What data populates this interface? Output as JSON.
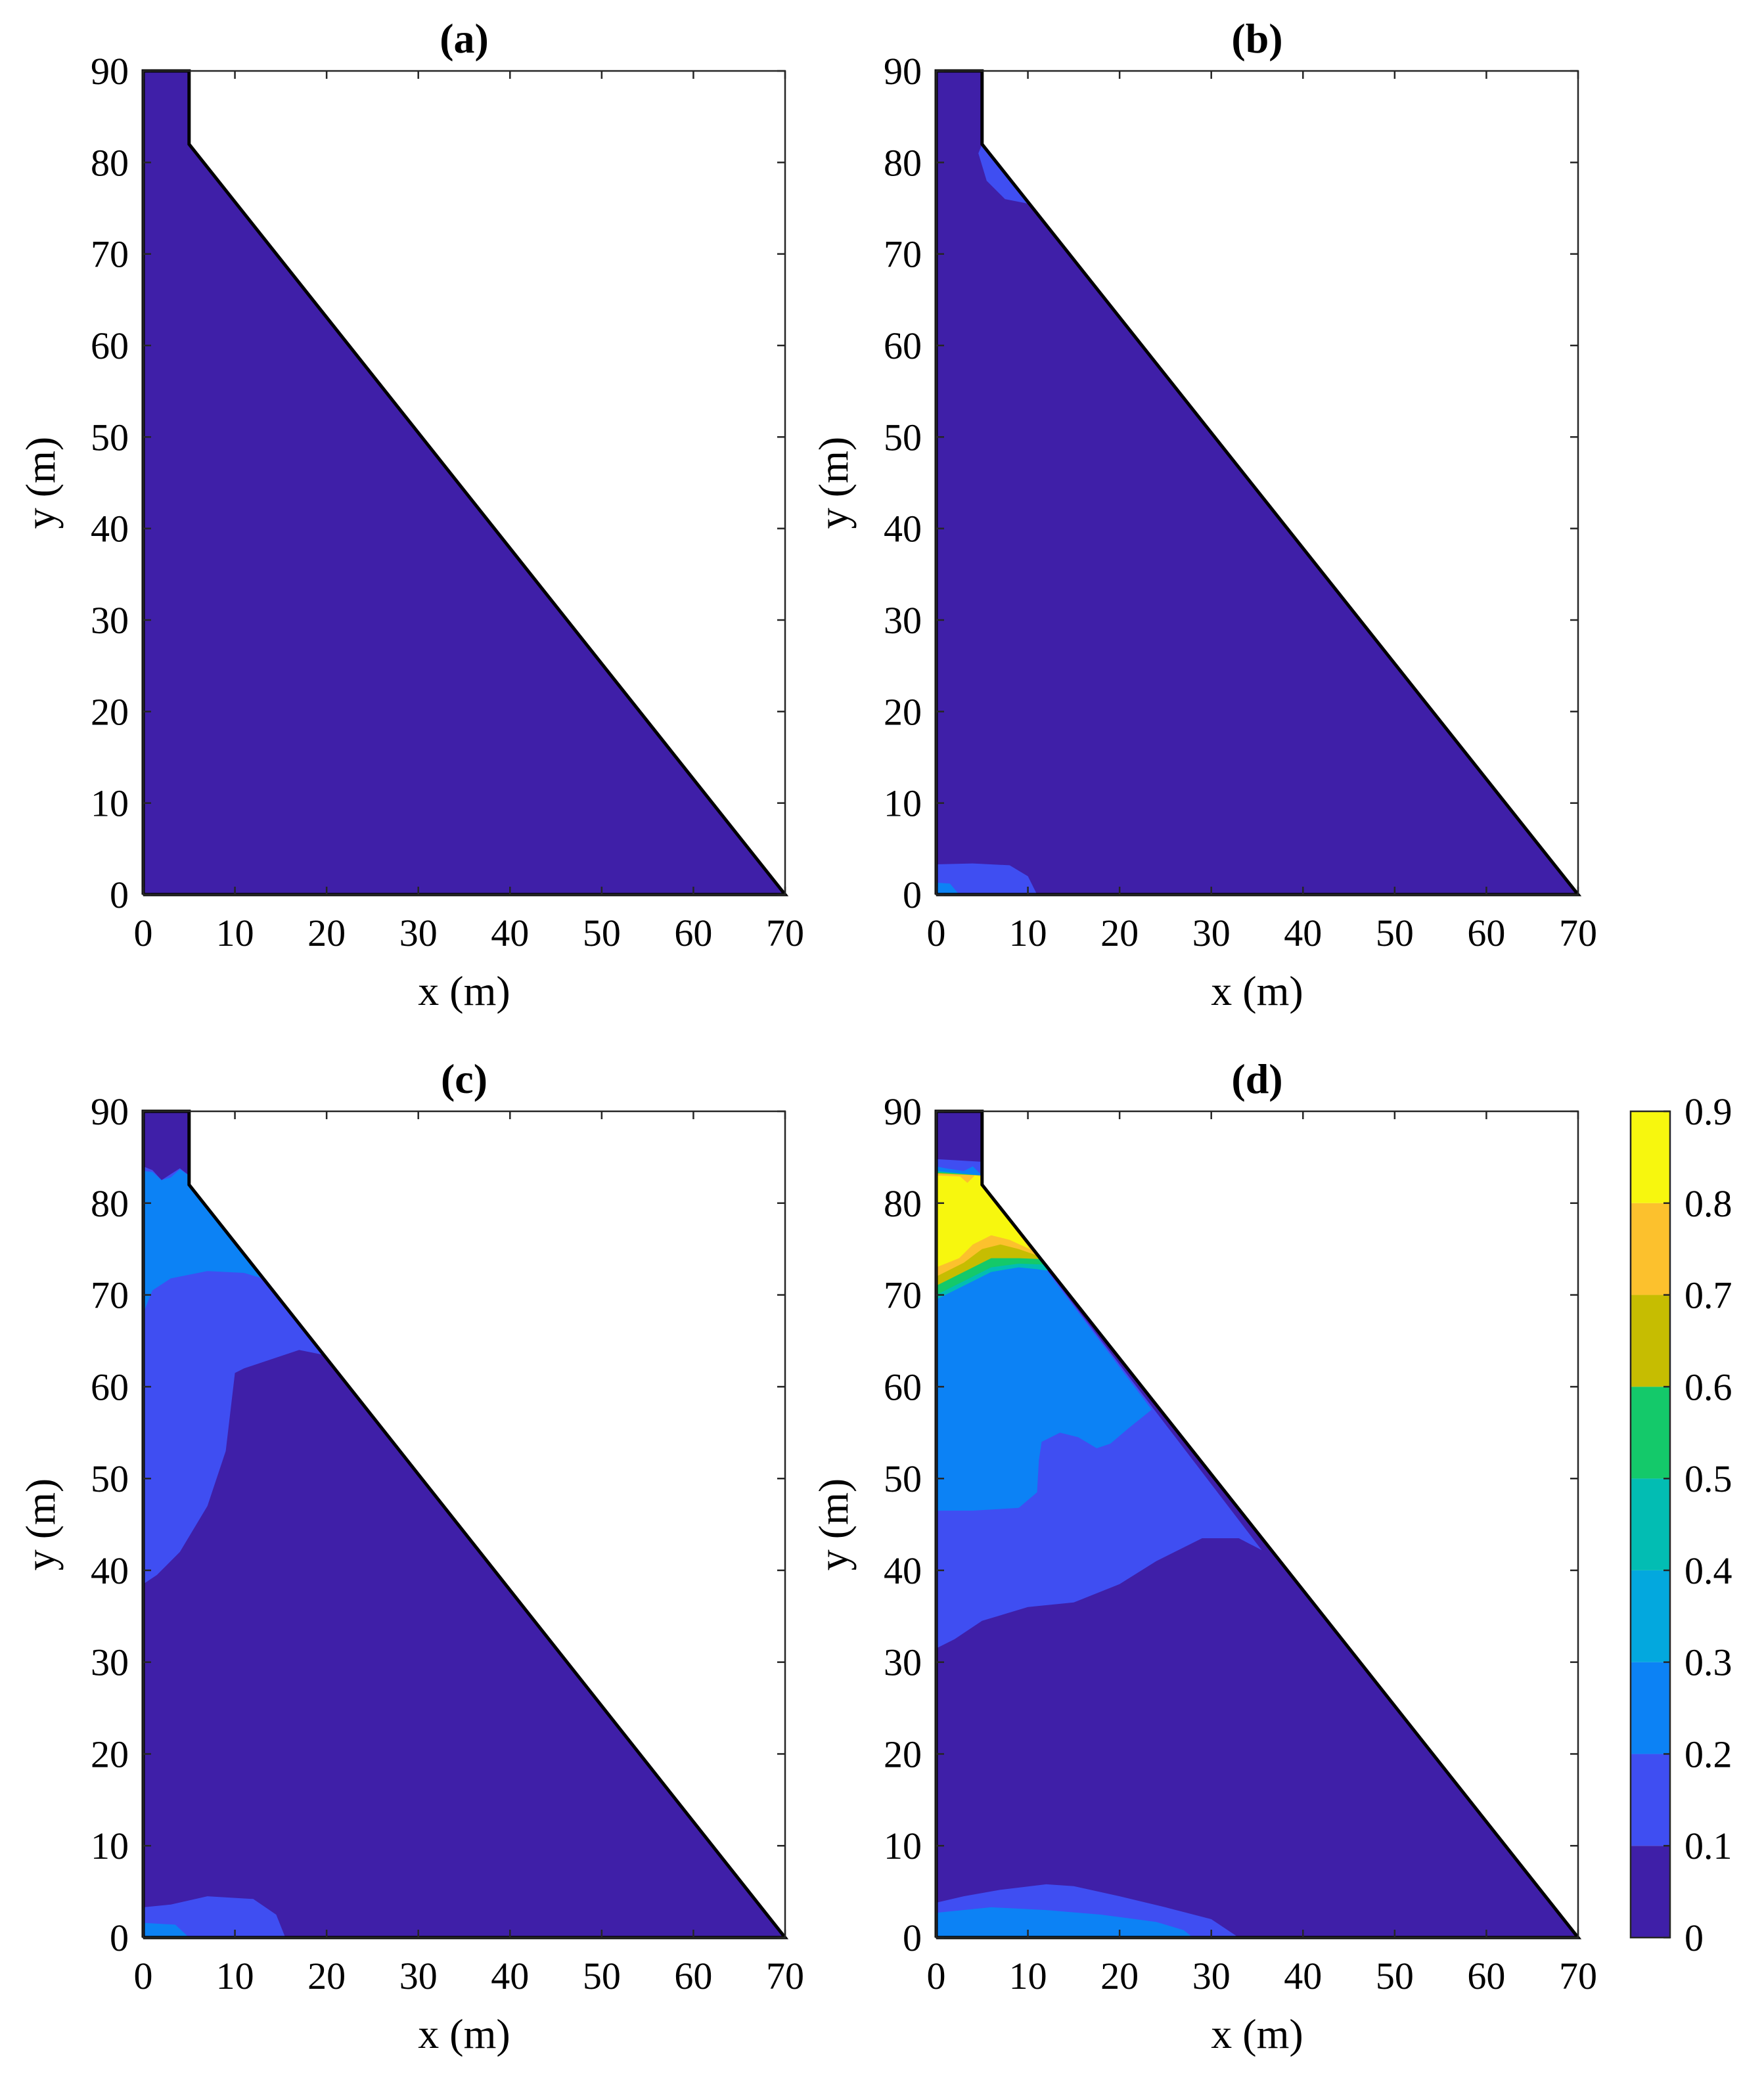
{
  "chart_data": {
    "type": "heatmap",
    "colorbar": {
      "ticks": [
        "0",
        "0.1",
        "0.2",
        "0.3",
        "0.4",
        "0.5",
        "0.6",
        "0.7",
        "0.8",
        "0.9"
      ],
      "range": [
        0,
        0.9
      ],
      "levels": [
        {
          "from": 0.0,
          "to": 0.1,
          "color": "#3f1fa8"
        },
        {
          "from": 0.1,
          "to": 0.2,
          "color": "#3f4ef2"
        },
        {
          "from": 0.2,
          "to": 0.3,
          "color": "#0c82f5"
        },
        {
          "from": 0.3,
          "to": 0.4,
          "color": "#03a8de"
        },
        {
          "from": 0.4,
          "to": 0.5,
          "color": "#02bdb3"
        },
        {
          "from": 0.5,
          "to": 0.6,
          "color": "#14c96a"
        },
        {
          "from": 0.6,
          "to": 0.7,
          "color": "#c6bd01"
        },
        {
          "from": 0.7,
          "to": 0.8,
          "color": "#fcc12d"
        },
        {
          "from": 0.8,
          "to": 0.9,
          "color": "#f7f70e"
        }
      ]
    },
    "panels": [
      {
        "title": "(a)",
        "xlabel": "x (m)",
        "ylabel": "y (m)",
        "xlim": [
          0,
          70
        ],
        "ylim": [
          0,
          90
        ],
        "xticks": [
          "0",
          "10",
          "20",
          "30",
          "40",
          "50",
          "60",
          "70"
        ],
        "yticks": [
          "0",
          "10",
          "20",
          "30",
          "40",
          "50",
          "60",
          "70",
          "80",
          "90"
        ],
        "regions": []
      },
      {
        "title": "(b)",
        "xlabel": "x (m)",
        "ylabel": "y (m)",
        "xlim": [
          0,
          70
        ],
        "ylim": [
          0,
          90
        ],
        "xticks": [
          "0",
          "10",
          "20",
          "30",
          "40",
          "50",
          "60",
          "70"
        ],
        "yticks": [
          "0",
          "10",
          "20",
          "30",
          "40",
          "50",
          "60",
          "70",
          "80",
          "90"
        ],
        "regions": [
          {
            "level": 1,
            "points": [
              [
                0,
                0
              ],
              [
                0,
                3.3
              ],
              [
                4,
                3.4
              ],
              [
                8,
                3.2
              ],
              [
                10,
                2
              ],
              [
                11,
                0
              ]
            ]
          },
          {
            "level": 2,
            "points": [
              [
                0,
                0
              ],
              [
                0,
                1.3
              ],
              [
                1.5,
                1.2
              ],
              [
                2.5,
                0
              ]
            ]
          },
          {
            "level": 1,
            "points": [
              [
                5,
                82
              ],
              [
                4.6,
                81
              ],
              [
                5.5,
                78
              ],
              [
                7.5,
                76
              ],
              [
                10,
                75.5
              ],
              [
                5,
                82
              ]
            ]
          }
        ]
      },
      {
        "title": "(c)",
        "xlabel": "x (m)",
        "ylabel": "y (m)",
        "xlim": [
          0,
          70
        ],
        "ylim": [
          0,
          90
        ],
        "xticks": [
          "0",
          "10",
          "20",
          "30",
          "40",
          "50",
          "60",
          "70"
        ],
        "yticks": [
          "0",
          "10",
          "20",
          "30",
          "40",
          "50",
          "60",
          "70",
          "80",
          "90"
        ],
        "regions": [
          {
            "level": 1,
            "points": [
              [
                0,
                38.5
              ],
              [
                1.5,
                39.5
              ],
              [
                4,
                42
              ],
              [
                7,
                47
              ],
              [
                9,
                53
              ],
              [
                10,
                61.5
              ],
              [
                11,
                62
              ],
              [
                14,
                63
              ],
              [
                17,
                64
              ],
              [
                19.5,
                63.5
              ],
              [
                5,
                82
              ],
              [
                5,
                83
              ],
              [
                4,
                83.8
              ],
              [
                2,
                82.5
              ],
              [
                1,
                83.6
              ],
              [
                0,
                84
              ]
            ]
          },
          {
            "level": 2,
            "points": [
              [
                0,
                68
              ],
              [
                1,
                70.5
              ],
              [
                3,
                71.8
              ],
              [
                7,
                72.6
              ],
              [
                11,
                72.4
              ],
              [
                14,
                71.5
              ],
              [
                5,
                82
              ],
              [
                5,
                83
              ],
              [
                4,
                83.7
              ],
              [
                3,
                82.8
              ],
              [
                2,
                82.5
              ],
              [
                1,
                83.4
              ],
              [
                0,
                83.5
              ]
            ]
          },
          {
            "level": 1,
            "points": [
              [
                0,
                0
              ],
              [
                0,
                3.3
              ],
              [
                3,
                3.6
              ],
              [
                7,
                4.5
              ],
              [
                12,
                4.2
              ],
              [
                14.5,
                2.5
              ],
              [
                15.5,
                0
              ]
            ]
          },
          {
            "level": 2,
            "points": [
              [
                0,
                0
              ],
              [
                0,
                1.6
              ],
              [
                3.5,
                1.4
              ],
              [
                5,
                0
              ]
            ]
          }
        ]
      },
      {
        "title": "(d)",
        "xlabel": "x (m)",
        "ylabel": "y (m)",
        "xlim": [
          0,
          70
        ],
        "ylim": [
          0,
          90
        ],
        "xticks": [
          "0",
          "10",
          "20",
          "30",
          "40",
          "50",
          "60",
          "70"
        ],
        "yticks": [
          "0",
          "10",
          "20",
          "30",
          "40",
          "50",
          "60",
          "70",
          "80",
          "90"
        ],
        "regions": [
          {
            "level": 1,
            "points": [
              [
                0,
                31.5
              ],
              [
                2,
                32.5
              ],
              [
                5,
                34.5
              ],
              [
                10,
                36
              ],
              [
                15,
                36.5
              ],
              [
                20,
                38.5
              ],
              [
                24,
                41
              ],
              [
                29,
                43.5
              ],
              [
                33,
                43.5
              ],
              [
                35.5,
                42.2
              ],
              [
                5,
                82
              ],
              [
                5,
                84.5
              ],
              [
                0,
                84.8
              ]
            ]
          },
          {
            "level": 2,
            "points": [
              [
                0,
                46.5
              ],
              [
                4,
                46.5
              ],
              [
                9,
                46.8
              ],
              [
                11,
                48.5
              ],
              [
                11.2,
                52
              ],
              [
                11.5,
                54
              ],
              [
                13.5,
                55
              ],
              [
                15.5,
                54.5
              ],
              [
                17.5,
                53.3
              ],
              [
                19,
                53.8
              ],
              [
                21,
                55.5
              ],
              [
                23.5,
                57.5
              ],
              [
                5,
                82
              ],
              [
                5,
                83
              ],
              [
                4,
                84
              ],
              [
                3,
                83.5
              ],
              [
                1,
                83.8
              ],
              [
                0,
                84
              ]
            ]
          },
          {
            "level": 4,
            "points": [
              [
                0,
                69.5
              ],
              [
                3,
                71
              ],
              [
                6,
                72.5
              ],
              [
                9,
                73
              ],
              [
                11,
                72.8
              ],
              [
                12.5,
                72.6
              ],
              [
                5,
                82
              ],
              [
                5,
                83
              ],
              [
                0,
                83.5
              ]
            ]
          },
          {
            "level": 5,
            "points": [
              [
                0,
                70
              ],
              [
                3,
                71.5
              ],
              [
                6,
                73
              ],
              [
                9,
                73.4
              ],
              [
                12,
                73.3
              ],
              [
                5,
                82
              ],
              [
                5,
                83
              ],
              [
                0,
                83.4
              ]
            ]
          },
          {
            "level": 6,
            "points": [
              [
                0,
                71
              ],
              [
                3,
                72.5
              ],
              [
                6,
                74
              ],
              [
                9,
                74
              ],
              [
                11.5,
                73.9
              ],
              [
                5,
                82
              ],
              [
                5,
                83
              ],
              [
                0,
                83.3
              ]
            ]
          },
          {
            "level": 7,
            "points": [
              [
                0,
                72
              ],
              [
                3,
                73.5
              ],
              [
                5,
                75
              ],
              [
                7,
                75.5
              ],
              [
                9,
                75
              ],
              [
                11,
                74.3
              ],
              [
                5,
                82
              ],
              [
                5,
                83
              ],
              [
                0,
                83.2
              ]
            ]
          },
          {
            "level": 8,
            "points": [
              [
                0,
                73
              ],
              [
                2.5,
                74
              ],
              [
                4,
                75.5
              ],
              [
                6,
                76.5
              ],
              [
                8,
                76
              ],
              [
                10.2,
                75
              ],
              [
                5,
                82
              ],
              [
                5,
                82.9
              ],
              [
                4.2,
                83
              ],
              [
                3.4,
                82.2
              ],
              [
                2.6,
                82.9
              ],
              [
                0,
                83
              ]
            ]
          },
          {
            "level": 1,
            "points": [
              [
                0,
                0
              ],
              [
                0,
                3.8
              ],
              [
                3,
                4.5
              ],
              [
                7,
                5.2
              ],
              [
                12,
                5.8
              ],
              [
                15,
                5.6
              ],
              [
                20,
                4.5
              ],
              [
                25,
                3.3
              ],
              [
                30,
                2
              ],
              [
                33,
                0
              ]
            ]
          },
          {
            "level": 2,
            "points": [
              [
                0,
                0
              ],
              [
                0,
                2.7
              ],
              [
                6,
                3.3
              ],
              [
                12,
                3
              ],
              [
                18,
                2.5
              ],
              [
                24,
                1.7
              ],
              [
                27,
                0.8
              ],
              [
                28,
                0
              ]
            ]
          }
        ]
      }
    ]
  }
}
